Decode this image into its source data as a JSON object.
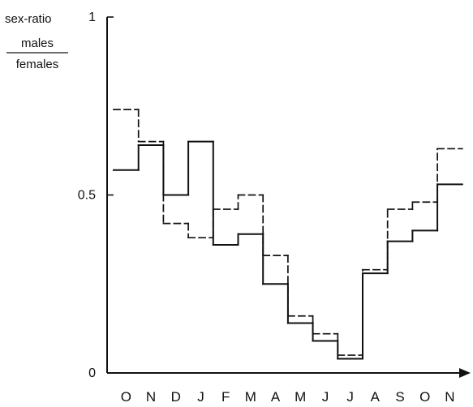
{
  "chart_data": {
    "type": "line",
    "style": "step",
    "categories": [
      "O",
      "N",
      "D",
      "J",
      "F",
      "M",
      "A",
      "M",
      "J",
      "J",
      "A",
      "S",
      "O",
      "N"
    ],
    "ylabel_top": "sex-ratio",
    "ylabel_numerator": "males",
    "ylabel_denominator": "females",
    "ylim": [
      0,
      1
    ],
    "yticks": [
      "0",
      "0.5",
      "1"
    ],
    "grid": false,
    "series": [
      {
        "line_style": "solid",
        "values": [
          0.57,
          0.64,
          0.5,
          0.65,
          0.36,
          0.39,
          0.25,
          0.14,
          0.09,
          0.04,
          0.28,
          0.37,
          0.4,
          0.53
        ]
      },
      {
        "line_style": "dashed",
        "values": [
          0.74,
          0.65,
          0.42,
          0.38,
          0.46,
          0.5,
          0.33,
          0.16,
          0.11,
          0.05,
          0.29,
          0.46,
          0.48,
          0.63
        ]
      }
    ],
    "colors": {
      "axis": "#111111",
      "series": "#111111"
    }
  }
}
